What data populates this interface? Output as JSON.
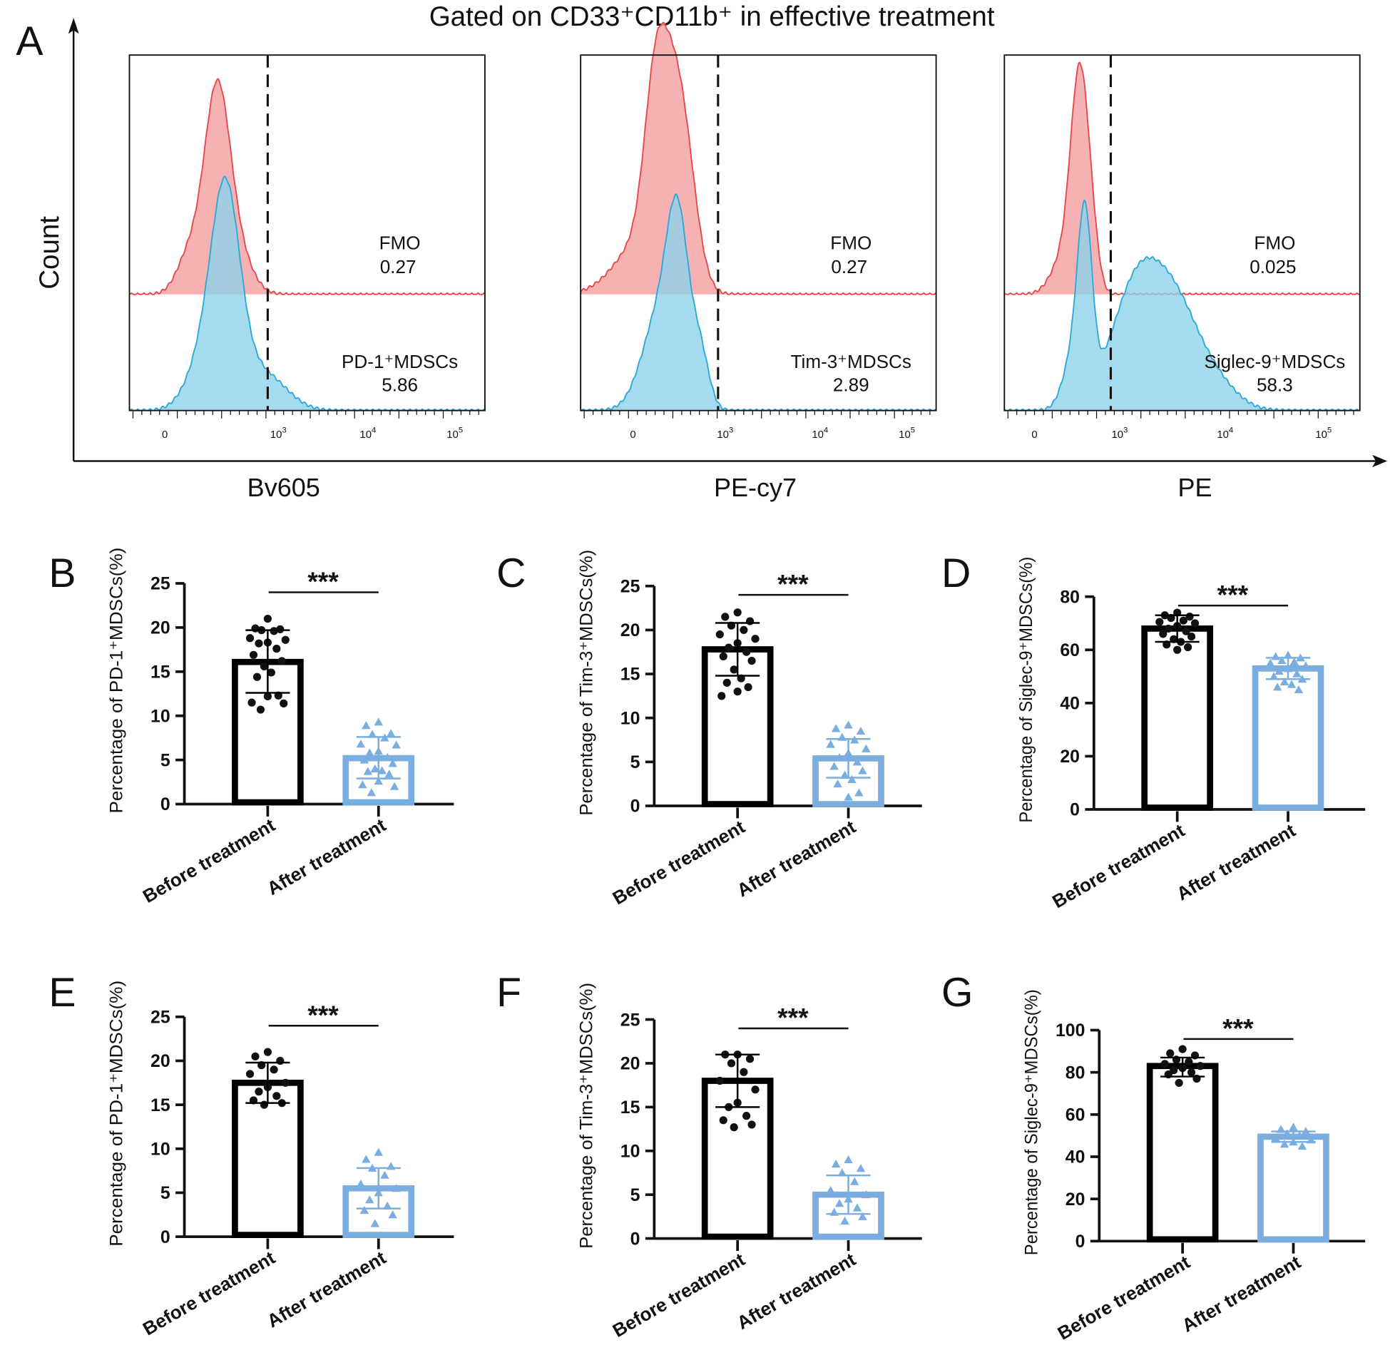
{
  "chart_data": [
    {
      "panel": "A",
      "type": "histogram",
      "title": "Gated on CD33⁺CD11b⁺ in effective treatment",
      "ylabel": "Count",
      "x_scale": "biexponential",
      "tick_labels": [
        "0",
        "10^3",
        "10^4",
        "10^5"
      ],
      "colors": {
        "fmo": "#e8474a",
        "fmo_fill": "#f4a3a5",
        "sample": "#2aa8d8",
        "sample_fill": "#8fd2ea"
      },
      "histograms": [
        {
          "xlabel": "Bv605",
          "fmo_label": "FMO",
          "fmo_value": "0.27",
          "sample_label": "PD-1⁺MDSCs",
          "sample_value": "5.86"
        },
        {
          "xlabel": "PE-cy7",
          "fmo_label": "FMO",
          "fmo_value": "0.27",
          "sample_label": "Tim-3⁺MDSCs",
          "sample_value": "2.89"
        },
        {
          "xlabel": "PE",
          "fmo_label": "FMO",
          "fmo_value": "0.025",
          "sample_label": "Siglec-9⁺MDSCs",
          "sample_value": "58.3"
        }
      ]
    },
    {
      "panel": "B",
      "type": "bar",
      "ylabel": "Percentage of PD-1⁺MDSCs(%)",
      "ylim": [
        0,
        25
      ],
      "yticks": [
        0,
        5,
        10,
        15,
        20,
        25
      ],
      "categories": [
        "Before treatment",
        "After treatment"
      ],
      "significance": "***",
      "series": [
        {
          "mean": 16.1,
          "sd": [
            12.6,
            19.7
          ],
          "color": "#000000",
          "points": [
            21,
            19.9,
            19.8,
            19.7,
            19.6,
            18.8,
            18.6,
            18.3,
            18.2,
            17.6,
            16.9,
            16.2,
            15.6,
            14.9,
            14.4,
            12.3,
            12.2,
            11.5,
            11.4,
            10.7
          ]
        },
        {
          "mean": 5.2,
          "sd": [
            2.9,
            7.6
          ],
          "color": "#7aaee0",
          "points": [
            9.3,
            8.9,
            8.0,
            7.9,
            7.5,
            6.8,
            6.7,
            6.0,
            5.8,
            5.3,
            5.0,
            4.6,
            4.0,
            3.8,
            3.7,
            3.4,
            2.6,
            2.2,
            2.0,
            1.3
          ]
        }
      ]
    },
    {
      "panel": "C",
      "type": "bar",
      "ylabel": "Percentage of Tim-3⁺MDSCs(%)",
      "ylim": [
        0,
        25
      ],
      "yticks": [
        0,
        5,
        10,
        15,
        20,
        25
      ],
      "categories": [
        "Before treatment",
        "After treatment"
      ],
      "significance": "***",
      "series": [
        {
          "mean": 17.8,
          "sd": [
            14.8,
            20.8
          ],
          "color": "#000000",
          "points": [
            22,
            21.5,
            21,
            20.5,
            20,
            19.5,
            19,
            18.5,
            18,
            17.5,
            17,
            16.5,
            15.5,
            14.5,
            14,
            13.5,
            13,
            12.5
          ]
        },
        {
          "mean": 5.4,
          "sd": [
            3.2,
            7.6
          ],
          "color": "#7aaee0",
          "points": [
            9.2,
            8.8,
            8.5,
            7.8,
            7.5,
            7,
            6.5,
            6,
            5.5,
            5,
            4.5,
            4,
            3.5,
            3,
            2.5,
            1.5,
            1
          ]
        }
      ]
    },
    {
      "panel": "D",
      "type": "bar",
      "ylabel": "Percentage of Siglec-9⁺MDSCs(%)",
      "ylim": [
        0,
        80
      ],
      "yticks": [
        0,
        20,
        40,
        60,
        80
      ],
      "categories": [
        "Before treatment",
        "After treatment"
      ],
      "significance": "***",
      "series": [
        {
          "mean": 68,
          "sd": [
            63,
            73
          ],
          "color": "#000000",
          "points": [
            74,
            73,
            72.5,
            72,
            71,
            70.5,
            70,
            69,
            68,
            67,
            66,
            65,
            64,
            63,
            62,
            61,
            60
          ]
        },
        {
          "mean": 53,
          "sd": [
            49,
            57
          ],
          "color": "#7aaee0",
          "points": [
            58,
            57.5,
            57,
            56,
            55.5,
            55,
            54,
            53,
            52,
            51,
            50,
            49,
            48,
            47,
            46,
            45
          ]
        }
      ]
    },
    {
      "panel": "E",
      "type": "bar",
      "ylabel": "Percentage of PD-1⁺MDSCs(%)",
      "ylim": [
        0,
        25
      ],
      "yticks": [
        0,
        5,
        10,
        15,
        20,
        25
      ],
      "categories": [
        "Before treatment",
        "After treatment"
      ],
      "significance": "***",
      "series": [
        {
          "mean": 17.5,
          "sd": [
            15.2,
            19.8
          ],
          "color": "#000000",
          "points": [
            21,
            20.5,
            20,
            19.5,
            19,
            18.5,
            17.5,
            17,
            16.5,
            16,
            15.5,
            15.2,
            15
          ]
        },
        {
          "mean": 5.5,
          "sd": [
            3.2,
            7.8
          ],
          "color": "#7aaee0",
          "points": [
            9.6,
            8.8,
            8,
            7.8,
            7,
            6,
            5.5,
            5,
            4.2,
            3.5,
            3,
            2.5,
            1.5
          ]
        }
      ]
    },
    {
      "panel": "F",
      "type": "bar",
      "ylabel": "Percentage of Tim-3⁺MDSCs(%)",
      "ylim": [
        0,
        25
      ],
      "yticks": [
        0,
        5,
        10,
        15,
        20,
        25
      ],
      "categories": [
        "Before treatment",
        "After treatment"
      ],
      "significance": "***",
      "series": [
        {
          "mean": 18,
          "sd": [
            15,
            21
          ],
          "color": "#000000",
          "points": [
            21,
            21,
            20.5,
            20,
            19,
            18,
            17,
            15.5,
            15,
            14,
            13.5,
            13,
            12.7
          ]
        },
        {
          "mean": 5,
          "sd": [
            2.8,
            7.2
          ],
          "color": "#7aaee0",
          "points": [
            9,
            8.5,
            8,
            7.5,
            6.5,
            5.5,
            5,
            4.5,
            4,
            3.5,
            3,
            2.5,
            2
          ]
        }
      ]
    },
    {
      "panel": "G",
      "type": "bar",
      "ylabel": "Percentage of Siglec-9⁺MDSCs(%)",
      "ylim": [
        0,
        100
      ],
      "yticks": [
        0,
        20,
        40,
        60,
        80,
        100
      ],
      "categories": [
        "Before treatment",
        "After treatment"
      ],
      "significance": "***",
      "series": [
        {
          "mean": 83,
          "sd": [
            78,
            87
          ],
          "color": "#000000",
          "points": [
            91,
            89,
            88,
            86,
            85,
            84,
            83,
            82,
            81,
            80,
            79,
            77,
            75
          ]
        },
        {
          "mean": 49.5,
          "sd": [
            47,
            52
          ],
          "color": "#7aaee0",
          "points": [
            54,
            53,
            52,
            51,
            50,
            49,
            48,
            47,
            46,
            45
          ]
        }
      ]
    }
  ]
}
